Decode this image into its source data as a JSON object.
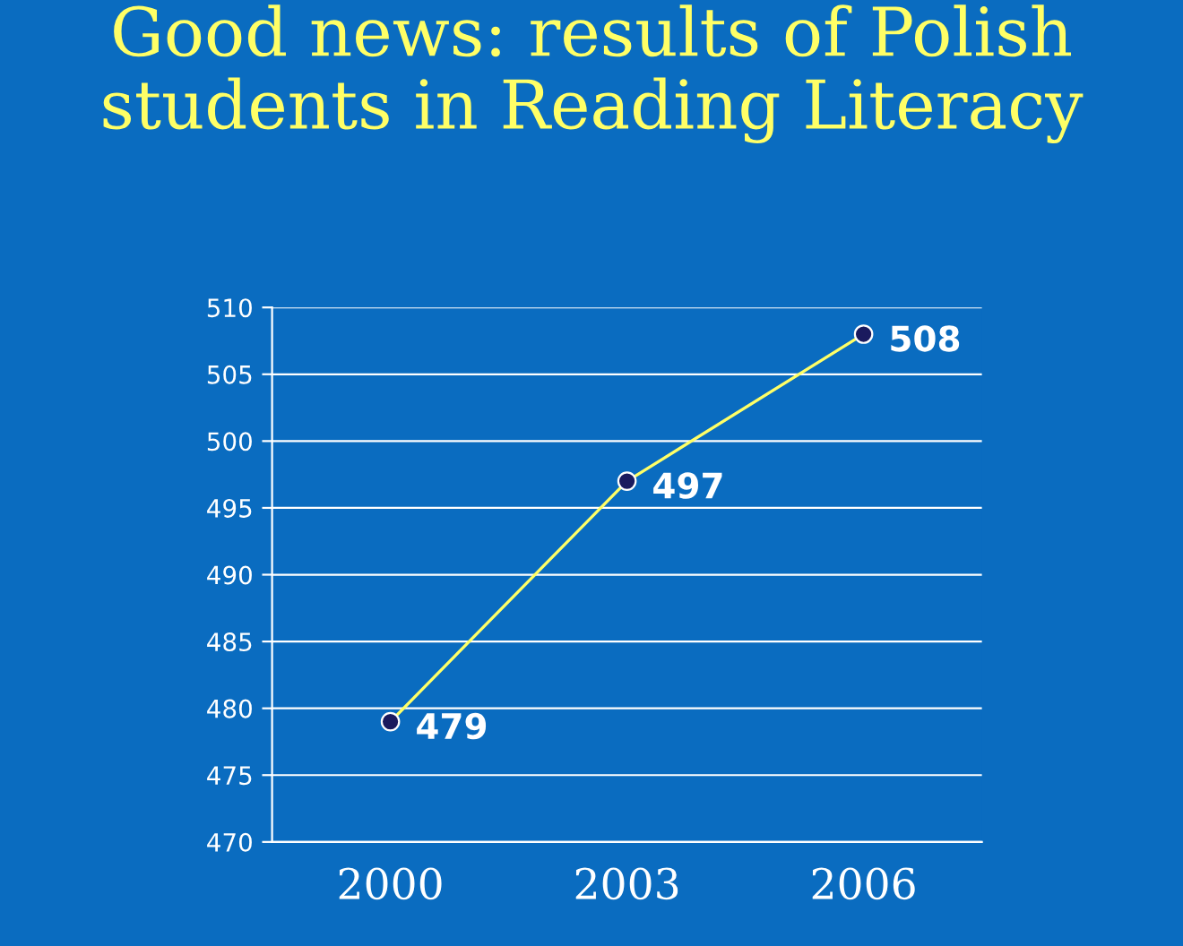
{
  "chart_data": {
    "type": "line",
    "title": "Good news: results of Polish students in Reading Literacy",
    "categories": [
      "2000",
      "2003",
      "2006"
    ],
    "series": [
      {
        "color": "#ffff66",
        "values": [
          479,
          497,
          508
        ]
      }
    ],
    "ylim": [
      470,
      510
    ],
    "yticks": [
      470,
      475,
      480,
      485,
      490,
      495,
      500,
      505,
      510
    ],
    "grid": "y",
    "marker": "circle",
    "line_style": "solid",
    "data_labels": true
  }
}
